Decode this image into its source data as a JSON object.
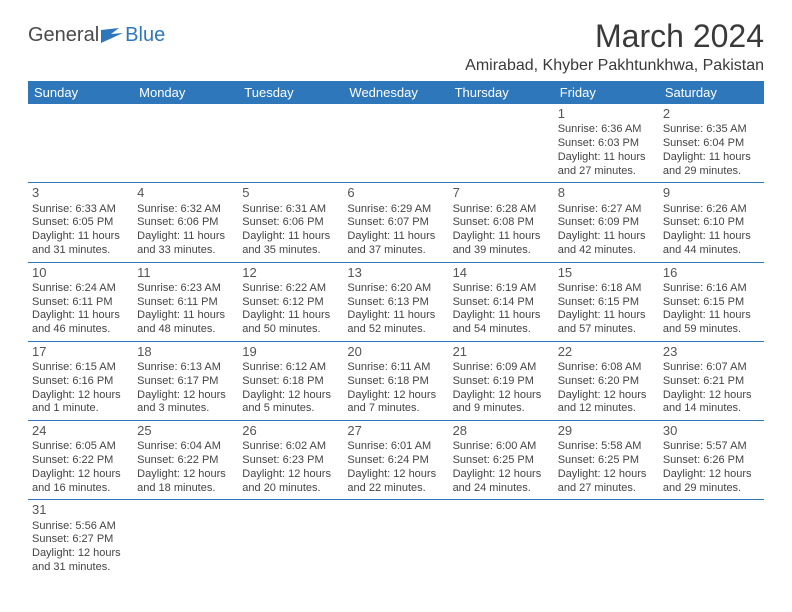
{
  "logo": {
    "dark": "General",
    "blue": "Blue"
  },
  "title": "March 2024",
  "location": "Amirabad, Khyber Pakhtunkhwa, Pakistan",
  "days": [
    "Sunday",
    "Monday",
    "Tuesday",
    "Wednesday",
    "Thursday",
    "Friday",
    "Saturday"
  ],
  "colors": {
    "headerBg": "#2f77bb",
    "headerText": "#ffffff",
    "border": "#2f77bb",
    "text": "#444"
  },
  "weeks": [
    [
      null,
      null,
      null,
      null,
      null,
      {
        "n": "1",
        "sr": "6:36 AM",
        "ss": "6:03 PM",
        "dl": "11 hours and 27 minutes."
      },
      {
        "n": "2",
        "sr": "6:35 AM",
        "ss": "6:04 PM",
        "dl": "11 hours and 29 minutes."
      }
    ],
    [
      {
        "n": "3",
        "sr": "6:33 AM",
        "ss": "6:05 PM",
        "dl": "11 hours and 31 minutes."
      },
      {
        "n": "4",
        "sr": "6:32 AM",
        "ss": "6:06 PM",
        "dl": "11 hours and 33 minutes."
      },
      {
        "n": "5",
        "sr": "6:31 AM",
        "ss": "6:06 PM",
        "dl": "11 hours and 35 minutes."
      },
      {
        "n": "6",
        "sr": "6:29 AM",
        "ss": "6:07 PM",
        "dl": "11 hours and 37 minutes."
      },
      {
        "n": "7",
        "sr": "6:28 AM",
        "ss": "6:08 PM",
        "dl": "11 hours and 39 minutes."
      },
      {
        "n": "8",
        "sr": "6:27 AM",
        "ss": "6:09 PM",
        "dl": "11 hours and 42 minutes."
      },
      {
        "n": "9",
        "sr": "6:26 AM",
        "ss": "6:10 PM",
        "dl": "11 hours and 44 minutes."
      }
    ],
    [
      {
        "n": "10",
        "sr": "6:24 AM",
        "ss": "6:11 PM",
        "dl": "11 hours and 46 minutes."
      },
      {
        "n": "11",
        "sr": "6:23 AM",
        "ss": "6:11 PM",
        "dl": "11 hours and 48 minutes."
      },
      {
        "n": "12",
        "sr": "6:22 AM",
        "ss": "6:12 PM",
        "dl": "11 hours and 50 minutes."
      },
      {
        "n": "13",
        "sr": "6:20 AM",
        "ss": "6:13 PM",
        "dl": "11 hours and 52 minutes."
      },
      {
        "n": "14",
        "sr": "6:19 AM",
        "ss": "6:14 PM",
        "dl": "11 hours and 54 minutes."
      },
      {
        "n": "15",
        "sr": "6:18 AM",
        "ss": "6:15 PM",
        "dl": "11 hours and 57 minutes."
      },
      {
        "n": "16",
        "sr": "6:16 AM",
        "ss": "6:15 PM",
        "dl": "11 hours and 59 minutes."
      }
    ],
    [
      {
        "n": "17",
        "sr": "6:15 AM",
        "ss": "6:16 PM",
        "dl": "12 hours and 1 minute."
      },
      {
        "n": "18",
        "sr": "6:13 AM",
        "ss": "6:17 PM",
        "dl": "12 hours and 3 minutes."
      },
      {
        "n": "19",
        "sr": "6:12 AM",
        "ss": "6:18 PM",
        "dl": "12 hours and 5 minutes."
      },
      {
        "n": "20",
        "sr": "6:11 AM",
        "ss": "6:18 PM",
        "dl": "12 hours and 7 minutes."
      },
      {
        "n": "21",
        "sr": "6:09 AM",
        "ss": "6:19 PM",
        "dl": "12 hours and 9 minutes."
      },
      {
        "n": "22",
        "sr": "6:08 AM",
        "ss": "6:20 PM",
        "dl": "12 hours and 12 minutes."
      },
      {
        "n": "23",
        "sr": "6:07 AM",
        "ss": "6:21 PM",
        "dl": "12 hours and 14 minutes."
      }
    ],
    [
      {
        "n": "24",
        "sr": "6:05 AM",
        "ss": "6:22 PM",
        "dl": "12 hours and 16 minutes."
      },
      {
        "n": "25",
        "sr": "6:04 AM",
        "ss": "6:22 PM",
        "dl": "12 hours and 18 minutes."
      },
      {
        "n": "26",
        "sr": "6:02 AM",
        "ss": "6:23 PM",
        "dl": "12 hours and 20 minutes."
      },
      {
        "n": "27",
        "sr": "6:01 AM",
        "ss": "6:24 PM",
        "dl": "12 hours and 22 minutes."
      },
      {
        "n": "28",
        "sr": "6:00 AM",
        "ss": "6:25 PM",
        "dl": "12 hours and 24 minutes."
      },
      {
        "n": "29",
        "sr": "5:58 AM",
        "ss": "6:25 PM",
        "dl": "12 hours and 27 minutes."
      },
      {
        "n": "30",
        "sr": "5:57 AM",
        "ss": "6:26 PM",
        "dl": "12 hours and 29 minutes."
      }
    ],
    [
      {
        "n": "31",
        "sr": "5:56 AM",
        "ss": "6:27 PM",
        "dl": "12 hours and 31 minutes."
      },
      null,
      null,
      null,
      null,
      null,
      null
    ]
  ],
  "labels": {
    "sunrise": "Sunrise:",
    "sunset": "Sunset:",
    "daylight": "Daylight:"
  }
}
